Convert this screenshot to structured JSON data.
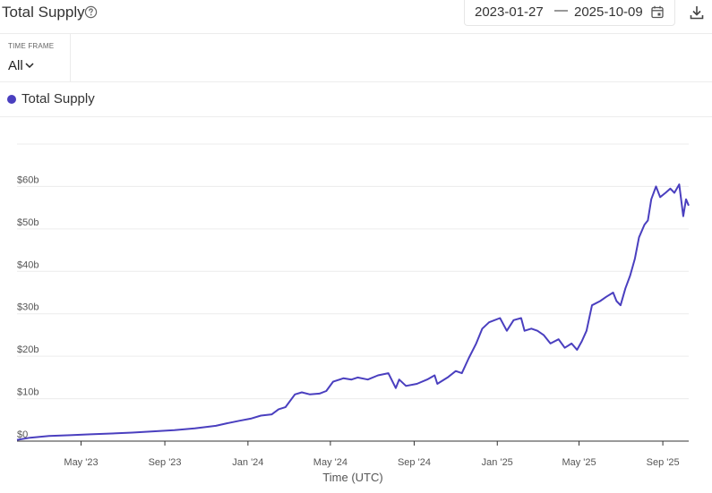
{
  "header": {
    "title": "Total Supply",
    "date_start": "2023-01-27",
    "date_separator": "—",
    "date_end": "2025-10-09"
  },
  "timeframe": {
    "label": "TIME FRAME",
    "value": "All"
  },
  "legend": {
    "label": "Total Supply"
  },
  "colors": {
    "series": "#4a3fbf",
    "grid": "#ececec",
    "axis": "#555555"
  },
  "icons": [
    "help-circle-icon",
    "calendar-icon",
    "download-icon",
    "chevron-down-icon"
  ],
  "chart_data": {
    "type": "line",
    "title": "",
    "xlabel": "Time (UTC)",
    "ylabel": "",
    "x_ticks": [
      "May '23",
      "Sep '23",
      "Jan '24",
      "May '24",
      "Sep '24",
      "Jan '25",
      "May '25",
      "Sep '25"
    ],
    "x_tick_dates": [
      "2023-05-01",
      "2023-09-01",
      "2024-01-01",
      "2024-05-01",
      "2024-09-01",
      "2025-01-01",
      "2025-05-01",
      "2025-09-01"
    ],
    "y_ticks": [
      "$0",
      "$10b",
      "$20b",
      "$30b",
      "$40b",
      "$50b",
      "$60b"
    ],
    "y_tick_values": [
      0,
      10,
      20,
      30,
      40,
      50,
      60
    ],
    "y_unit": "billion USD",
    "xlim": [
      "2023-01-27",
      "2025-10-09"
    ],
    "ylim": [
      0,
      70
    ],
    "grid": true,
    "legend_position": "top-left",
    "series": [
      {
        "name": "Total Supply",
        "x": [
          "2023-01-27",
          "2023-02-15",
          "2023-03-15",
          "2023-04-15",
          "2023-05-15",
          "2023-06-15",
          "2023-07-15",
          "2023-08-15",
          "2023-09-15",
          "2023-10-15",
          "2023-11-15",
          "2023-12-01",
          "2023-12-20",
          "2024-01-05",
          "2024-01-20",
          "2024-02-05",
          "2024-02-15",
          "2024-02-25",
          "2024-03-10",
          "2024-03-20",
          "2024-04-01",
          "2024-04-15",
          "2024-04-25",
          "2024-05-05",
          "2024-05-20",
          "2024-06-01",
          "2024-06-10",
          "2024-06-25",
          "2024-07-10",
          "2024-07-25",
          "2024-08-05",
          "2024-08-10",
          "2024-08-20",
          "2024-09-05",
          "2024-09-20",
          "2024-10-01",
          "2024-10-05",
          "2024-10-20",
          "2024-11-01",
          "2024-11-10",
          "2024-11-20",
          "2024-12-01",
          "2024-12-10",
          "2024-12-20",
          "2025-01-05",
          "2025-01-15",
          "2025-01-25",
          "2025-02-05",
          "2025-02-10",
          "2025-02-20",
          "2025-03-01",
          "2025-03-10",
          "2025-03-20",
          "2025-04-01",
          "2025-04-10",
          "2025-04-20",
          "2025-04-28",
          "2025-05-05",
          "2025-05-12",
          "2025-05-20",
          "2025-06-01",
          "2025-06-10",
          "2025-06-20",
          "2025-06-25",
          "2025-07-01",
          "2025-07-08",
          "2025-07-15",
          "2025-07-22",
          "2025-07-28",
          "2025-08-05",
          "2025-08-10",
          "2025-08-15",
          "2025-08-22",
          "2025-08-28",
          "2025-09-05",
          "2025-09-12",
          "2025-09-18",
          "2025-09-25",
          "2025-10-01",
          "2025-10-05",
          "2025-10-09"
        ],
        "values": [
          0.3,
          0.8,
          1.2,
          1.4,
          1.6,
          1.8,
          2.0,
          2.3,
          2.6,
          3.0,
          3.6,
          4.2,
          4.8,
          5.3,
          6.0,
          6.3,
          7.5,
          8.0,
          11.0,
          11.5,
          11.0,
          11.2,
          11.8,
          14.0,
          14.8,
          14.5,
          15.0,
          14.5,
          15.5,
          16.0,
          12.5,
          14.5,
          13.0,
          13.5,
          14.5,
          15.5,
          13.5,
          15.0,
          16.5,
          16.0,
          19.5,
          23.0,
          26.5,
          28.0,
          29.0,
          26.0,
          28.5,
          29.0,
          26.0,
          26.5,
          26.0,
          25.0,
          23.0,
          24.0,
          22.0,
          23.0,
          21.5,
          23.5,
          26.0,
          32.0,
          33.0,
          34.0,
          35.0,
          33.0,
          32.0,
          36.0,
          39.0,
          43.0,
          48.0,
          51.0,
          52.0,
          57.0,
          60.0,
          57.5,
          58.5,
          59.5,
          58.5,
          60.5,
          53.0,
          57.0,
          55.5
        ]
      }
    ]
  }
}
